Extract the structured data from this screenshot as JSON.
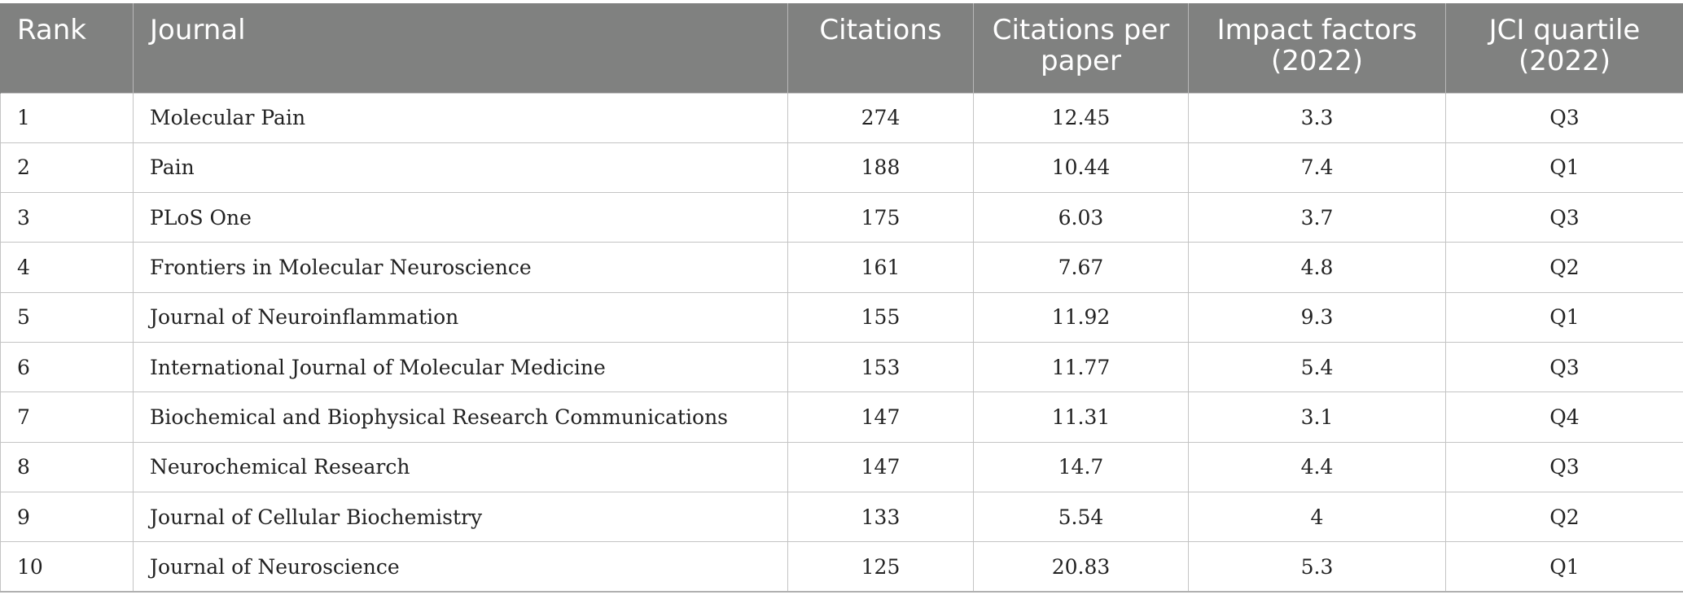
{
  "table": {
    "headers": {
      "rank": "Rank",
      "journal": "Journal",
      "citations": "Citations",
      "citations_per_paper": "Citations per paper",
      "impact_factors": "Impact factors (2022)",
      "jci_quartile": "JCI quartile (2022)"
    },
    "rows": [
      {
        "rank": "1",
        "journal": "Molecular Pain",
        "citations": "274",
        "citations_per_paper": "12.45",
        "impact_factor": "3.3",
        "jci_quartile": "Q3"
      },
      {
        "rank": "2",
        "journal": "Pain",
        "citations": "188",
        "citations_per_paper": "10.44",
        "impact_factor": "7.4",
        "jci_quartile": "Q1"
      },
      {
        "rank": "3",
        "journal": "PLoS One",
        "citations": "175",
        "citations_per_paper": "6.03",
        "impact_factor": "3.7",
        "jci_quartile": "Q3"
      },
      {
        "rank": "4",
        "journal": "Frontiers in Molecular Neuroscience",
        "citations": "161",
        "citations_per_paper": "7.67",
        "impact_factor": "4.8",
        "jci_quartile": "Q2"
      },
      {
        "rank": "5",
        "journal": "Journal of Neuroinflammation",
        "citations": "155",
        "citations_per_paper": "11.92",
        "impact_factor": "9.3",
        "jci_quartile": "Q1"
      },
      {
        "rank": "6",
        "journal": "International Journal of Molecular Medicine",
        "citations": "153",
        "citations_per_paper": "11.77",
        "impact_factor": "5.4",
        "jci_quartile": "Q3"
      },
      {
        "rank": "7",
        "journal": "Biochemical and Biophysical Research Communications",
        "citations": "147",
        "citations_per_paper": "11.31",
        "impact_factor": "3.1",
        "jci_quartile": "Q4"
      },
      {
        "rank": "8",
        "journal": "Neurochemical Research",
        "citations": "147",
        "citations_per_paper": "14.7",
        "impact_factor": "4.4",
        "jci_quartile": "Q3"
      },
      {
        "rank": "9",
        "journal": "Journal of Cellular Biochemistry",
        "citations": "133",
        "citations_per_paper": "5.54",
        "impact_factor": "4",
        "jci_quartile": "Q2"
      },
      {
        "rank": "10",
        "journal": "Journal of Neuroscience",
        "citations": "125",
        "citations_per_paper": "20.83",
        "impact_factor": "5.3",
        "jci_quartile": "Q1"
      }
    ]
  },
  "colors": {
    "header_background": "#808180",
    "header_text": "#ffffff",
    "grid_line": "#c4c4c4",
    "body_text": "#222222"
  }
}
